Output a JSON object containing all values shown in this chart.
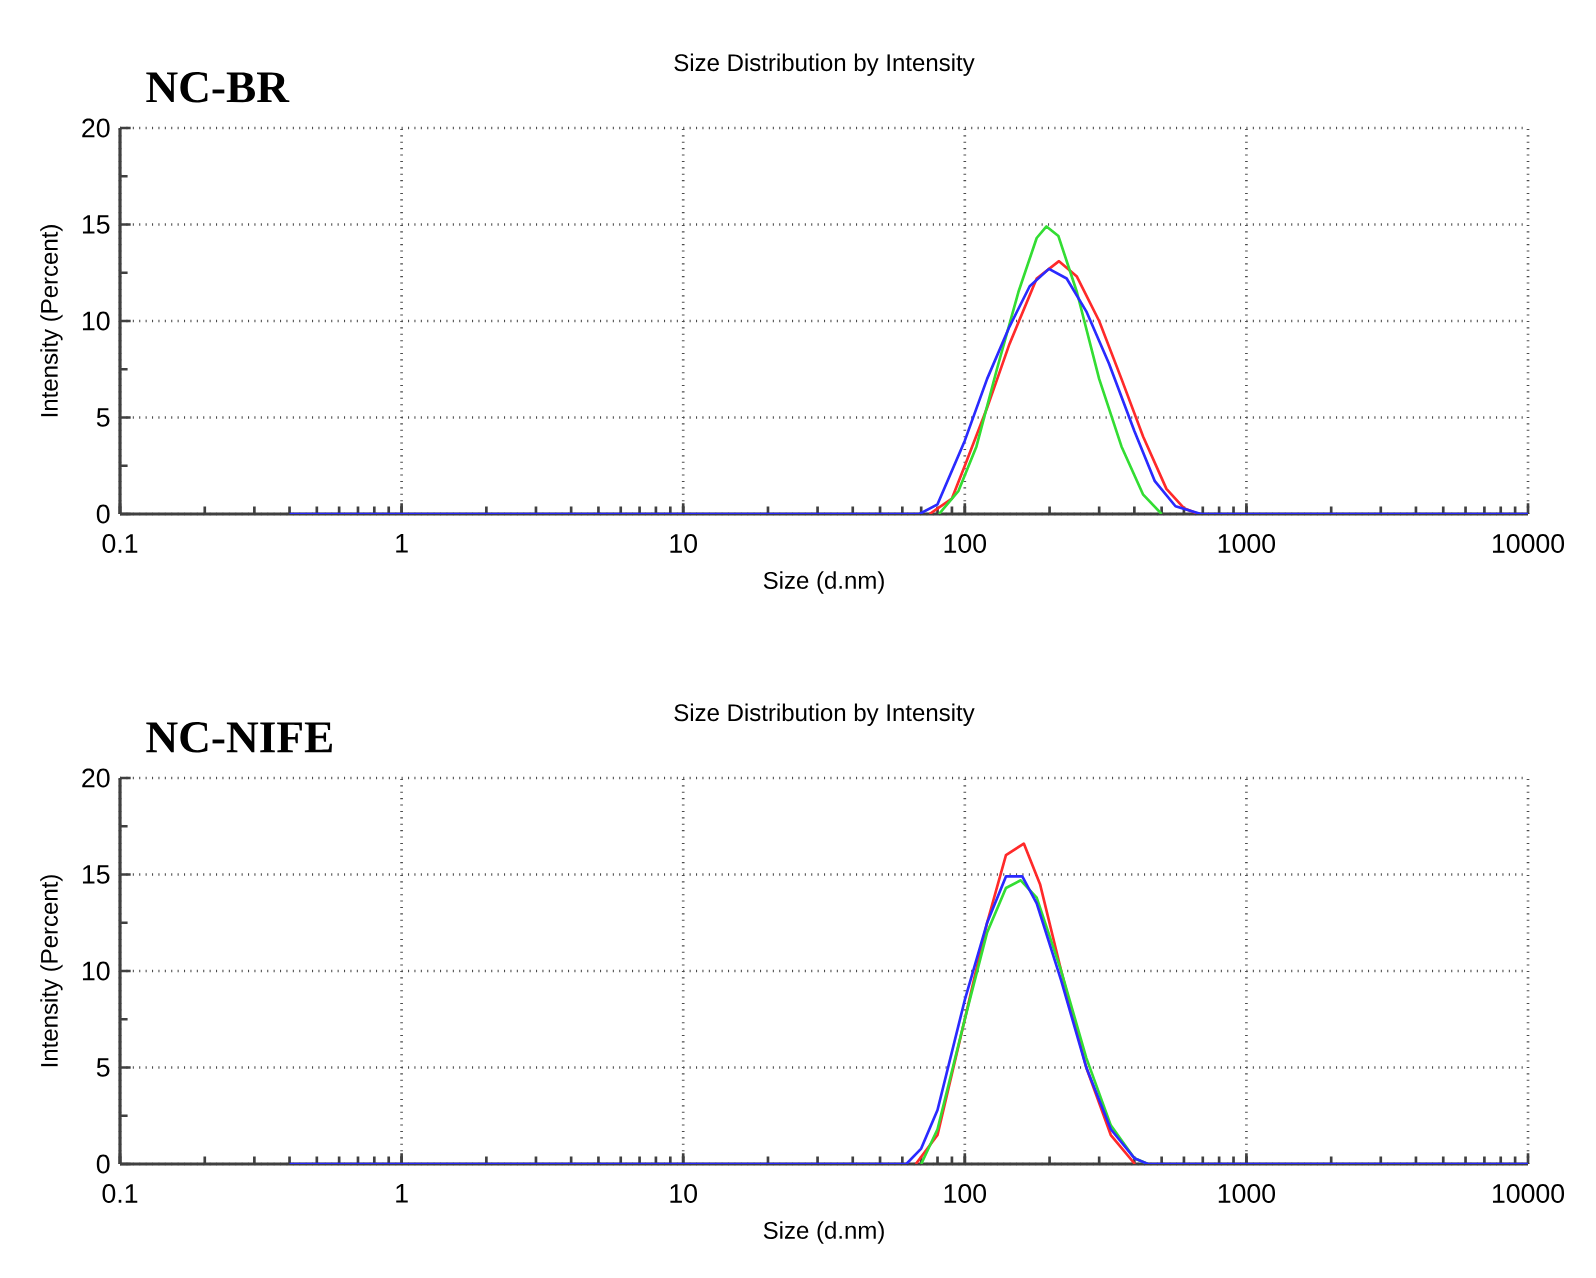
{
  "chart_data": [
    {
      "type": "line",
      "title": "Size Distribution by Intensity",
      "annotations": [
        "NC-BR"
      ],
      "xlabel": "Size (d.nm)",
      "ylabel": "Intensity (Percent)",
      "log": "x",
      "grid": true,
      "marker": "none",
      "line_style": "solid",
      "xlim": [
        0.1,
        10000
      ],
      "ylim": [
        0,
        20
      ],
      "xticks": [
        0.1,
        1,
        10,
        100,
        1000,
        10000
      ],
      "yticks": [
        0,
        5,
        10,
        15,
        20
      ],
      "series": [
        {
          "color": "#ff2a2a",
          "x": [
            75,
            90,
            100,
            120,
            144,
            180,
            216,
            250,
            300,
            360,
            430,
            520,
            600,
            675
          ],
          "values": [
            0,
            0.8,
            2.5,
            5.5,
            8.8,
            12.2,
            13.1,
            12.3,
            10,
            7,
            4,
            1.3,
            0.3,
            0
          ]
        },
        {
          "color": "#33dd33",
          "x": [
            81,
            95,
            110,
            130,
            155,
            180,
            195,
            215,
            250,
            300,
            360,
            430,
            500
          ],
          "values": [
            0,
            1.2,
            3.5,
            7.5,
            11.5,
            14.3,
            14.9,
            14.4,
            11.5,
            7,
            3.5,
            1,
            0
          ]
        },
        {
          "color": "#2a2aff",
          "x": [
            0.4,
            69,
            80,
            100,
            120,
            144,
            170,
            199,
            230,
            270,
            325,
            400,
            473,
            560,
            690,
            10000
          ],
          "values": [
            0,
            0,
            0.5,
            3.8,
            7,
            9.7,
            11.8,
            12.7,
            12.2,
            10.5,
            7.8,
            4.3,
            1.7,
            0.4,
            0,
            0
          ]
        }
      ]
    },
    {
      "type": "line",
      "title": "Size Distribution by Intensity",
      "annotations": [
        "NC-NIFE"
      ],
      "xlabel": "Size (d.nm)",
      "ylabel": "Intensity (Percent)",
      "log": "x",
      "grid": true,
      "marker": "none",
      "line_style": "solid",
      "xlim": [
        0.1,
        10000
      ],
      "ylim": [
        0,
        20
      ],
      "xticks": [
        0.1,
        1,
        10,
        100,
        1000,
        10000
      ],
      "yticks": [
        0,
        5,
        10,
        15,
        20
      ],
      "series": [
        {
          "color": "#ff2a2a",
          "x": [
            67,
            80,
            100,
            120,
            140,
            162,
            185,
            220,
            270,
            330,
            402
          ],
          "values": [
            0,
            1.5,
            7.5,
            12.5,
            16,
            16.6,
            14.5,
            10,
            5,
            1.5,
            0
          ]
        },
        {
          "color": "#33dd33",
          "x": [
            70,
            80,
            100,
            120,
            140,
            158,
            180,
            220,
            270,
            330,
            400,
            447
          ],
          "values": [
            0,
            1.8,
            7.5,
            12,
            14.3,
            14.7,
            13.8,
            10,
            5.5,
            2,
            0.3,
            0
          ]
        },
        {
          "color": "#2a2aff",
          "x": [
            0.4,
            62,
            70,
            80,
            100,
            120,
            140,
            160,
            180,
            220,
            270,
            330,
            400,
            447,
            10000
          ],
          "values": [
            0,
            0,
            0.8,
            2.8,
            8.5,
            12.5,
            14.9,
            14.9,
            13.5,
            9.5,
            5,
            1.8,
            0.3,
            0,
            0
          ]
        }
      ]
    }
  ]
}
